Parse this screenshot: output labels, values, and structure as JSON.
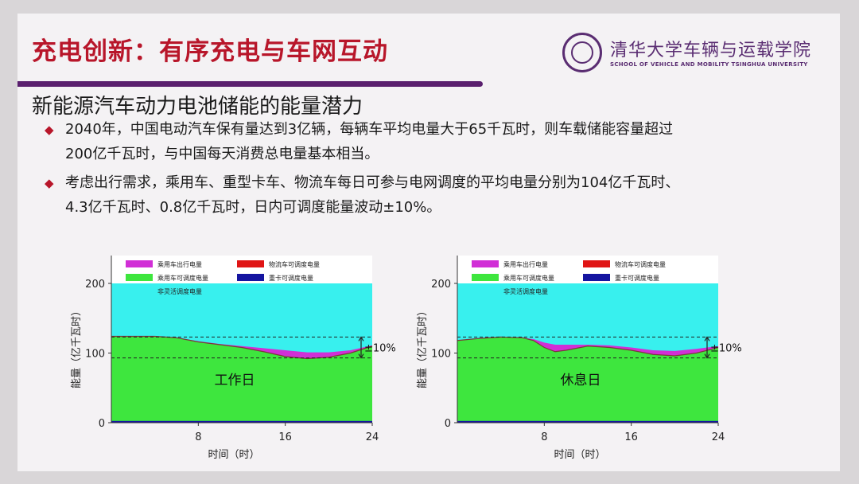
{
  "slide": {
    "title": "充电创新：有序充电与车网互动",
    "logo": {
      "name": "清华大学车辆与运载学院",
      "subtitle": "SCHOOL OF VEHICLE AND MOBILITY TSINGHUA UNIVERSITY"
    },
    "subtitle": "新能源汽车动力电池储能的能量潜力",
    "bullets": [
      {
        "line1": "2040年，中国电动汽车保有量达到3亿辆，每辆车平均电量大于65千瓦时，则车载储能容量超过",
        "line2": "200亿千瓦时，与中国每天消费总电量基本相当。"
      },
      {
        "line1": "考虑出行需求，乘用车、重型卡车、物流车每日可参与电网调度的平均电量分别为104亿千瓦时、",
        "line2": "4.3亿千瓦时、0.8亿千瓦时，日内可调度能量波动±10%。"
      }
    ]
  },
  "chart_data": [
    {
      "type": "area",
      "title": "工作日",
      "xlabel": "时间（时）",
      "ylabel": "能量（亿千瓦时）",
      "xlim": [
        0,
        24
      ],
      "ylim": [
        0,
        240
      ],
      "xticks": [
        "8",
        "16",
        "24"
      ],
      "yticks": [
        "0",
        "100",
        "200"
      ],
      "legend": [
        {
          "name": "乘用车出行电量",
          "color": "#d12fd6"
        },
        {
          "name": "物流车可调度电量",
          "color": "#e01515"
        },
        {
          "name": "乘用车可调度电量",
          "color": "#3ee63e"
        },
        {
          "name": "重卡可调度电量",
          "color": "#1515a0"
        },
        {
          "name": "非灵活调度电量",
          "color": "#38f0ee"
        }
      ],
      "annotation": "±10%",
      "ref_lines": [
        123,
        93
      ],
      "nonflex_top": 200,
      "x": [
        0,
        2,
        4,
        6,
        8,
        10,
        12,
        14,
        16,
        18,
        20,
        22,
        24
      ],
      "green_top": [
        124,
        124,
        124,
        122,
        116,
        112,
        108,
        102,
        95,
        92,
        94,
        100,
        110
      ],
      "purple_top": [
        124,
        124,
        124,
        122,
        117,
        113,
        110,
        107,
        104,
        101,
        101,
        104,
        111
      ]
    },
    {
      "type": "area",
      "title": "休息日",
      "xlabel": "时间（时）",
      "ylabel": "能量（亿千瓦时）",
      "xlim": [
        0,
        24
      ],
      "ylim": [
        0,
        240
      ],
      "xticks": [
        "8",
        "16",
        "24"
      ],
      "yticks": [
        "0",
        "100",
        "200"
      ],
      "legend": [
        {
          "name": "乘用车出行电量",
          "color": "#d12fd6"
        },
        {
          "name": "物流车可调度电量",
          "color": "#e01515"
        },
        {
          "name": "乘用车可调度电量",
          "color": "#3ee63e"
        },
        {
          "name": "重卡可调度电量",
          "color": "#1515a0"
        },
        {
          "name": "非灵活调度电量",
          "color": "#38f0ee"
        }
      ],
      "annotation": "±10%",
      "ref_lines": [
        123,
        93
      ],
      "nonflex_top": 200,
      "x": [
        0,
        2,
        4,
        6,
        7,
        8,
        9,
        10,
        12,
        14,
        16,
        18,
        20,
        22,
        24
      ],
      "green_top": [
        118,
        121,
        123,
        122,
        118,
        108,
        102,
        104,
        110,
        108,
        104,
        98,
        96,
        100,
        108
      ],
      "purple_top": [
        118,
        121,
        123,
        122,
        120,
        115,
        112,
        112,
        112,
        111,
        108,
        104,
        103,
        106,
        110
      ]
    }
  ]
}
